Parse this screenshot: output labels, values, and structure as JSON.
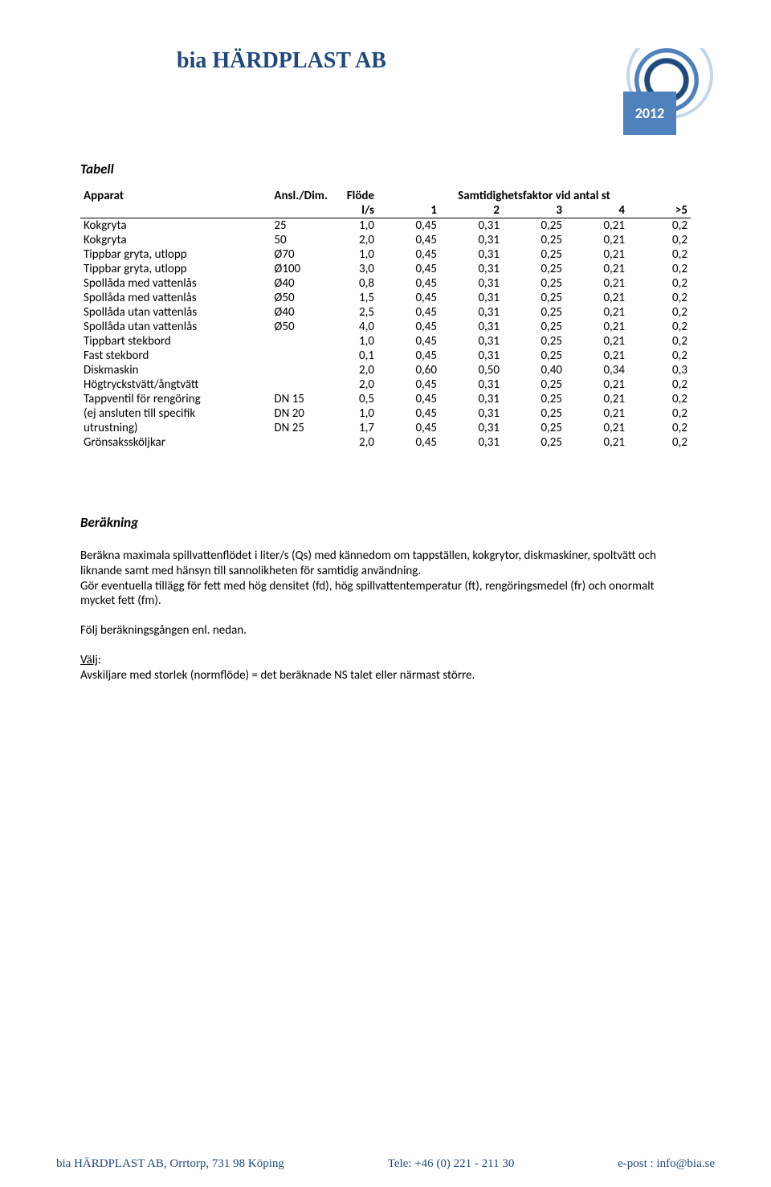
{
  "header": {
    "company": "bia HÄRDPLAST AB",
    "year": "2012"
  },
  "table": {
    "title": "Tabell",
    "head": {
      "apparat": "Apparat",
      "dim": "Ansl./Dim.",
      "flow": "Flöde",
      "factor_title": "Samtidighetsfaktor vid antal st",
      "flow_unit": "l/s",
      "c1": "1",
      "c2": "2",
      "c3": "3",
      "c4": "4",
      "c5": ">5"
    },
    "rows": [
      {
        "a": "Kokgryta",
        "d": "25",
        "f": "1,0",
        "v": [
          "0,45",
          "0,31",
          "0,25",
          "0,21",
          "0,2"
        ]
      },
      {
        "a": "Kokgryta",
        "d": "50",
        "f": "2,0",
        "v": [
          "0,45",
          "0,31",
          "0,25",
          "0,21",
          "0,2"
        ]
      },
      {
        "a": "Tippbar gryta, utlopp",
        "d": "Ø70",
        "f": "1,0",
        "v": [
          "0,45",
          "0,31",
          "0,25",
          "0,21",
          "0,2"
        ]
      },
      {
        "a": "Tippbar gryta, utlopp",
        "d": "Ø100",
        "f": "3,0",
        "v": [
          "0,45",
          "0,31",
          "0,25",
          "0,21",
          "0,2"
        ]
      },
      {
        "a": "Spollåda med vattenlås",
        "d": "Ø40",
        "f": "0,8",
        "v": [
          "0,45",
          "0,31",
          "0,25",
          "0,21",
          "0,2"
        ]
      },
      {
        "a": "Spollåda med vattenlås",
        "d": "Ø50",
        "f": "1,5",
        "v": [
          "0,45",
          "0,31",
          "0,25",
          "0,21",
          "0,2"
        ]
      },
      {
        "a": "Spollåda utan vattenlås",
        "d": "Ø40",
        "f": "2,5",
        "v": [
          "0,45",
          "0,31",
          "0,25",
          "0,21",
          "0,2"
        ]
      },
      {
        "a": "Spollåda utan vattenlås",
        "d": "Ø50",
        "f": "4,0",
        "v": [
          "0,45",
          "0,31",
          "0,25",
          "0,21",
          "0,2"
        ]
      },
      {
        "a": "Tippbart stekbord",
        "d": "",
        "f": "1,0",
        "v": [
          "0,45",
          "0,31",
          "0,25",
          "0,21",
          "0,2"
        ]
      },
      {
        "a": "Fast stekbord",
        "d": "",
        "f": "0,1",
        "v": [
          "0,45",
          "0,31",
          "0,25",
          "0,21",
          "0,2"
        ]
      },
      {
        "a": "Diskmaskin",
        "d": "",
        "f": "2,0",
        "v": [
          "0,60",
          "0,50",
          "0,40",
          "0,34",
          "0,3"
        ]
      },
      {
        "a": "Högtryckstvätt/ångtvätt",
        "d": "",
        "f": "2,0",
        "v": [
          "0,45",
          "0,31",
          "0,25",
          "0,21",
          "0,2"
        ]
      },
      {
        "a": "Tappventil för rengöring",
        "d": "DN 15",
        "f": "0,5",
        "v": [
          "0,45",
          "0,31",
          "0,25",
          "0,21",
          "0,2"
        ]
      },
      {
        "a": "(ej ansluten till specifik",
        "d": "DN 20",
        "f": "1,0",
        "v": [
          "0,45",
          "0,31",
          "0,25",
          "0,21",
          "0,2"
        ]
      },
      {
        "a": "utrustning)",
        "d": "DN 25",
        "f": "1,7",
        "v": [
          "0,45",
          "0,31",
          "0,25",
          "0,21",
          "0,2"
        ]
      },
      {
        "a": "Grönsakssköljkar",
        "d": "",
        "f": "2,0",
        "v": [
          "0,45",
          "0,31",
          "0,25",
          "0,21",
          "0,2"
        ]
      }
    ]
  },
  "calc": {
    "title": "Beräkning",
    "p1": "Beräkna maximala spillvattenflödet i liter/s (Qs) med kännedom om tappställen, kokgrytor, diskmaskiner, spoltvätt och liknande samt med hänsyn till sannolikheten för samtidig användning.",
    "p2": " Gör eventuella tillägg för fett med hög densitet (fd),  hög spillvattentemperatur (ft), rengöringsmedel (fr) och onormalt mycket fett (fm).",
    "p3": "Följ beräkningsgången enl. nedan.",
    "choose_label": "Välj",
    "p4": "Avskiljare med storlek (normflöde) = det beräknade NS talet eller närmast större."
  },
  "footer": {
    "addr": "bia HÄRDPLAST AB, Orrtorp, 731 98 Köping",
    "tele_label": "Tele:  ",
    "tele": "+46 (0) 221 - 211 30",
    "email_label": "e-post :  ",
    "email": "info@bia.se"
  }
}
